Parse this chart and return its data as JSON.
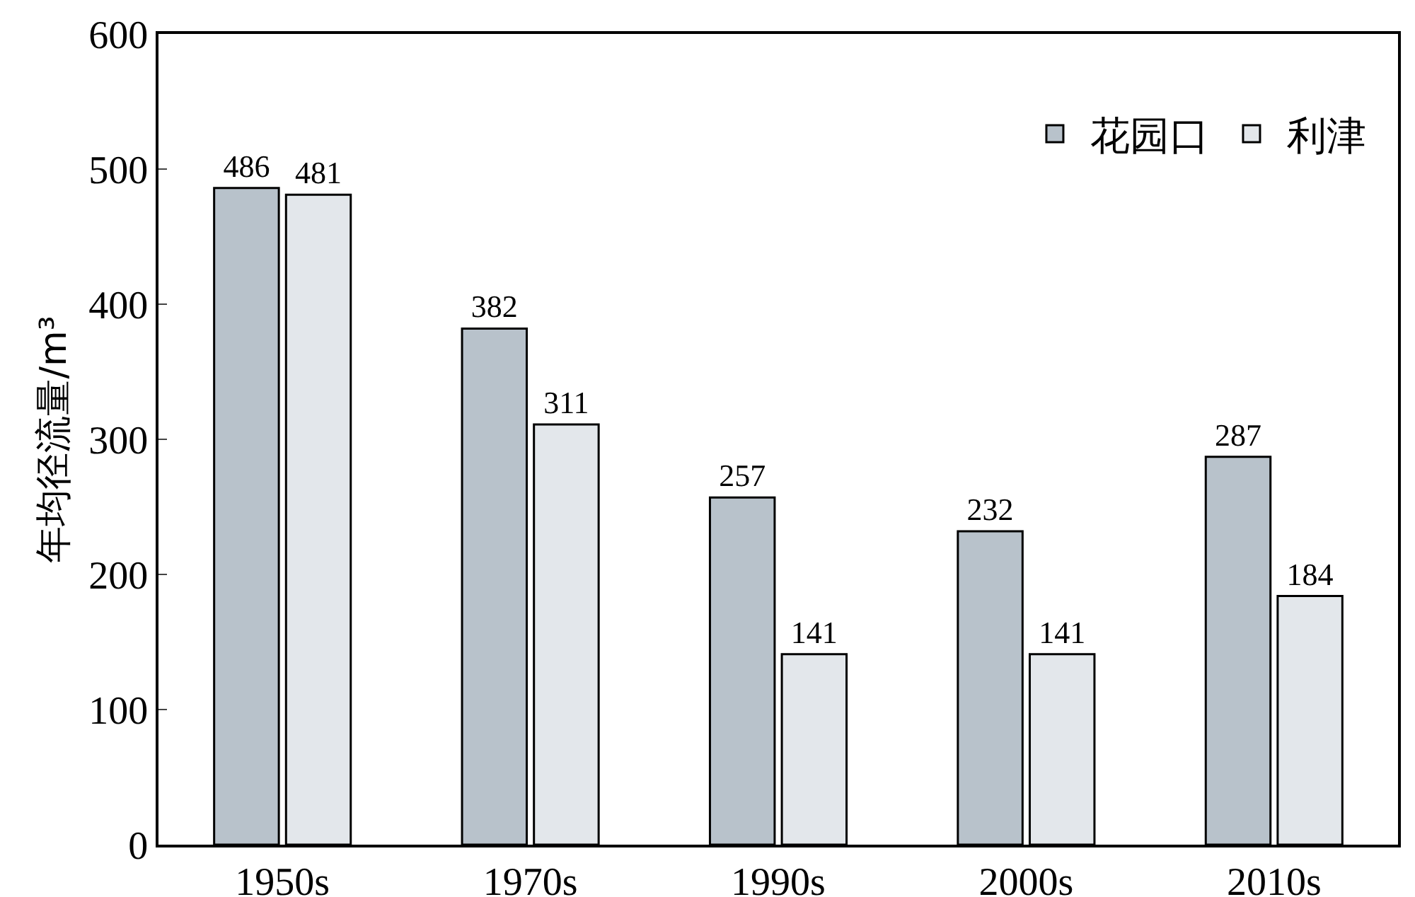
{
  "chart_data": {
    "type": "bar",
    "ylabel": "年均径流量/m³",
    "categories": [
      "1950s",
      "1970s",
      "1990s",
      "2000s",
      "2010s"
    ],
    "series": [
      {
        "name": "花园口",
        "color": "#b8c2cb",
        "values": [
          486,
          382,
          257,
          232,
          287
        ]
      },
      {
        "name": "利津",
        "color": "#e3e7eb",
        "values": [
          481,
          311,
          141,
          141,
          184
        ]
      }
    ],
    "ylim": [
      0,
      600
    ],
    "yticks": [
      0,
      100,
      200,
      300,
      400,
      500,
      600
    ],
    "data_labels": true,
    "legend": "top right",
    "grid": false
  }
}
